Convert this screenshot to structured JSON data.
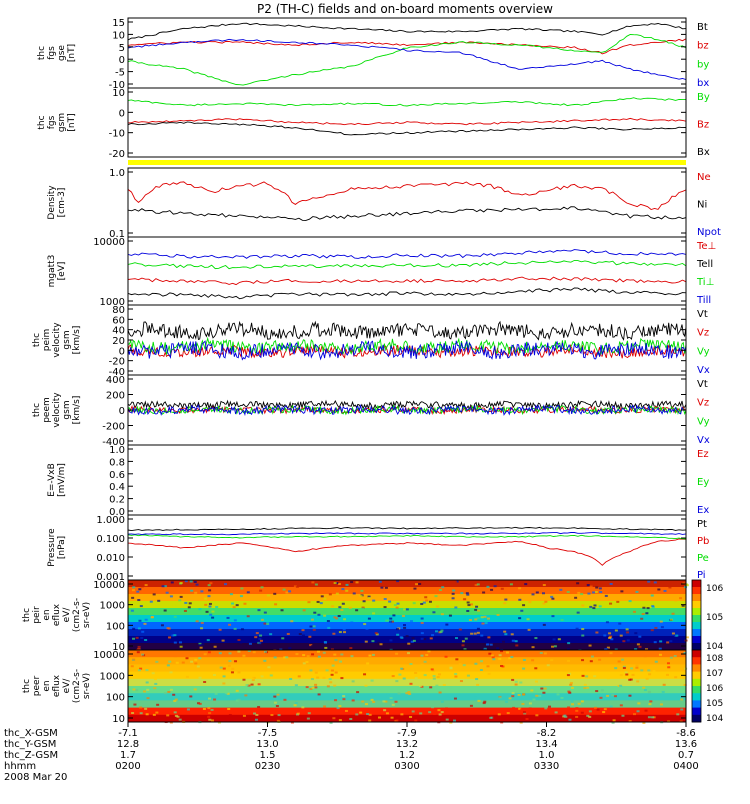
{
  "title": "P2 (TH-C) fields and on-board moments overview",
  "colors": {
    "black": "#000000",
    "red": "#dd0000",
    "green": "#00dd00",
    "blue": "#0000dd",
    "yellow": "#ffff00"
  },
  "chart_data": [
    {
      "type": "line",
      "id": "fgs_gse",
      "ylabel": [
        "thc",
        "fgs",
        "gse",
        "[nT]"
      ],
      "ticks": [
        "15",
        "10",
        "5",
        "0",
        "-5",
        "-10"
      ],
      "ylim": [
        -10,
        16
      ],
      "series": [
        {
          "name": "Bt",
          "color": "#000000",
          "x": [
            0,
            0.1,
            0.2,
            0.3,
            0.4,
            0.5,
            0.6,
            0.7,
            0.8,
            0.85,
            0.9,
            0.95,
            1.0
          ],
          "values": [
            8,
            12,
            14,
            13,
            12,
            11,
            11,
            12,
            11,
            10,
            13,
            14,
            12
          ]
        },
        {
          "name": "bz",
          "color": "#dd0000",
          "x": [
            0,
            0.1,
            0.2,
            0.3,
            0.4,
            0.5,
            0.6,
            0.7,
            0.8,
            0.85,
            0.9,
            0.95,
            1.0
          ],
          "values": [
            6,
            7,
            7,
            6,
            7,
            6,
            7,
            6,
            5,
            3,
            6,
            7,
            8
          ]
        },
        {
          "name": "by",
          "color": "#00dd00",
          "x": [
            0,
            0.1,
            0.2,
            0.3,
            0.4,
            0.5,
            0.6,
            0.7,
            0.8,
            0.85,
            0.9,
            0.95,
            1.0
          ],
          "values": [
            0,
            -3,
            -9,
            -5,
            -2,
            5,
            7,
            6,
            4,
            3,
            10,
            8,
            5
          ]
        },
        {
          "name": "bx",
          "color": "#0000dd",
          "x": [
            0,
            0.1,
            0.2,
            0.3,
            0.4,
            0.5,
            0.6,
            0.7,
            0.8,
            0.85,
            0.9,
            0.95,
            1.0
          ],
          "values": [
            5,
            7,
            8,
            7,
            6,
            4,
            3,
            -3,
            -1,
            0,
            -3,
            -5,
            -7
          ]
        }
      ]
    },
    {
      "type": "line",
      "id": "fgs_gsm",
      "ylabel": [
        "thc",
        "fgs",
        "gsm",
        "[nT]"
      ],
      "ticks": [
        "10",
        "0",
        "-10",
        "-20"
      ],
      "ylim": [
        -25,
        15
      ],
      "series": [
        {
          "name": "By",
          "color": "#00dd00",
          "x": [
            0,
            0.1,
            0.2,
            0.3,
            0.4,
            0.5,
            0.6,
            0.7,
            0.8,
            0.9,
            1.0
          ],
          "values": [
            8,
            5,
            6,
            5,
            6,
            5,
            6,
            7,
            5,
            9,
            8
          ]
        },
        {
          "name": "Bz",
          "color": "#dd0000",
          "x": [
            0,
            0.1,
            0.2,
            0.3,
            0.4,
            0.5,
            0.6,
            0.7,
            0.8,
            0.9,
            1.0
          ],
          "values": [
            -5,
            -4,
            -3,
            -5,
            -6,
            -5,
            -6,
            -5,
            -4,
            -3,
            -4
          ]
        },
        {
          "name": "Bx",
          "color": "#000000",
          "x": [
            0,
            0.1,
            0.2,
            0.3,
            0.4,
            0.5,
            0.6,
            0.7,
            0.8,
            0.9,
            1.0
          ],
          "values": [
            -6,
            -5,
            -6,
            -8,
            -12,
            -11,
            -10,
            -9,
            -8,
            -9,
            -8
          ]
        }
      ]
    },
    {
      "type": "line",
      "id": "density",
      "ylabel": [
        "Density",
        "[cm^-3]"
      ],
      "ticks": [
        "1.0",
        "0.1"
      ],
      "ylim": [
        0.1,
        1.0
      ],
      "series": [
        {
          "name": "Ne",
          "color": "#dd0000",
          "x": [
            0,
            0.02,
            0.05,
            0.1,
            0.15,
            0.2,
            0.25,
            0.3,
            0.4,
            0.5,
            0.6,
            0.65,
            0.7,
            0.8,
            0.85,
            0.9,
            0.95,
            1.0
          ],
          "values": [
            0.5,
            0.3,
            0.55,
            0.6,
            0.45,
            0.55,
            0.6,
            0.3,
            0.5,
            0.55,
            0.6,
            0.55,
            0.4,
            0.55,
            0.5,
            0.3,
            0.25,
            0.5
          ]
        },
        {
          "name": "Ni",
          "color": "#000000",
          "x": [
            0,
            0.1,
            0.2,
            0.3,
            0.4,
            0.5,
            0.6,
            0.7,
            0.8,
            0.9,
            1.0
          ],
          "values": [
            0.25,
            0.22,
            0.2,
            0.18,
            0.2,
            0.22,
            0.24,
            0.25,
            0.26,
            0.2,
            0.19
          ]
        },
        {
          "name": "Npot",
          "color": "#0000dd",
          "x": [],
          "values": []
        }
      ]
    },
    {
      "type": "line",
      "id": "temperature",
      "ylabel": [
        "mgatt3",
        "[eV]"
      ],
      "ticks": [
        "10000",
        "1000"
      ],
      "ylim": [
        1000,
        10000
      ],
      "series": [
        {
          "name": "Te⊥",
          "color": "#dd0000",
          "x": [
            0,
            0.1,
            0.2,
            0.3,
            0.4,
            0.5,
            0.6,
            0.7,
            0.8,
            0.9,
            1.0
          ],
          "values": [
            2400,
            2200,
            2100,
            2300,
            2200,
            2300,
            2200,
            2500,
            2400,
            2300,
            2200
          ]
        },
        {
          "name": "Tell",
          "color": "#000000",
          "x": [
            0,
            0.1,
            0.2,
            0.3,
            0.4,
            0.5,
            0.6,
            0.7,
            0.8,
            0.9,
            1.0
          ],
          "values": [
            1500,
            1400,
            1300,
            1450,
            1400,
            1500,
            1400,
            1600,
            1700,
            1550,
            1450
          ]
        },
        {
          "name": "Ti⊥",
          "color": "#00dd00",
          "x": [
            0,
            0.1,
            0.2,
            0.3,
            0.4,
            0.5,
            0.6,
            0.7,
            0.8,
            0.9,
            1.0
          ],
          "values": [
            4000,
            3700,
            3600,
            3800,
            3700,
            3900,
            3800,
            4200,
            4300,
            4100,
            3900
          ]
        },
        {
          "name": "Till",
          "color": "#0000dd",
          "x": [
            0,
            0.1,
            0.2,
            0.3,
            0.4,
            0.5,
            0.6,
            0.7,
            0.8,
            0.9,
            1.0
          ],
          "values": [
            5600,
            5200,
            5000,
            5300,
            5100,
            5400,
            5300,
            5800,
            6200,
            5700,
            5500
          ]
        }
      ]
    },
    {
      "type": "line",
      "id": "peim_velocity",
      "ylabel": [
        "thc",
        "peim",
        "velocity",
        "gsm",
        "[km/s]"
      ],
      "ticks": [
        "80",
        "60",
        "40",
        "20",
        "0",
        "-20",
        "-40"
      ],
      "ylim": [
        -50,
        85
      ],
      "series": [
        {
          "name": "Vt",
          "color": "#000000",
          "base": 35,
          "noise": 14
        },
        {
          "name": "Vz",
          "color": "#dd0000",
          "base": -5,
          "noise": 10
        },
        {
          "name": "Vy",
          "color": "#00dd00",
          "base": 5,
          "noise": 12
        },
        {
          "name": "Vx",
          "color": "#0000dd",
          "base": -2,
          "noise": 14
        }
      ]
    },
    {
      "type": "line",
      "id": "peem_velocity",
      "ylabel": [
        "thc",
        "peem",
        "velocity",
        "gsm",
        "[km/s]"
      ],
      "ticks": [
        "400",
        "200",
        "0",
        "-200",
        "-400"
      ],
      "ylim": [
        -420,
        420
      ],
      "series": [
        {
          "name": "Vt",
          "color": "#000000",
          "base": 60,
          "noise": 40
        },
        {
          "name": "Vz",
          "color": "#dd0000",
          "base": 0,
          "noise": 35
        },
        {
          "name": "Vy",
          "color": "#00dd00",
          "base": 0,
          "noise": 40
        },
        {
          "name": "Vx",
          "color": "#0000dd",
          "base": 0,
          "noise": 45
        }
      ]
    },
    {
      "type": "line",
      "id": "efield",
      "ylabel": [
        "E=-VxB",
        "[mV/m]"
      ],
      "ticks": [
        "1.0",
        "0.8",
        "0.6",
        "0.4",
        "0.2",
        "0.0"
      ],
      "ylim": [
        0,
        1
      ],
      "series": [
        {
          "name": "Ez",
          "color": "#dd0000"
        },
        {
          "name": "Ey",
          "color": "#00dd00"
        },
        {
          "name": "Ex",
          "color": "#0000dd"
        }
      ]
    },
    {
      "type": "line",
      "id": "pressure",
      "ylabel": [
        "Pressure",
        "[nPa]"
      ],
      "ticks": [
        "1.000",
        "0.100",
        "0.010",
        "0.001"
      ],
      "ylim": [
        0.001,
        1.0
      ],
      "series": [
        {
          "name": "Pt",
          "color": "#000000",
          "x": [
            0,
            0.1,
            0.2,
            0.3,
            0.4,
            0.5,
            0.6,
            0.7,
            0.8,
            0.9,
            1.0
          ],
          "values": [
            0.2,
            0.21,
            0.22,
            0.24,
            0.25,
            0.24,
            0.25,
            0.26,
            0.25,
            0.22,
            0.2
          ]
        },
        {
          "name": "Pb",
          "color": "#dd0000",
          "x": [
            0,
            0.05,
            0.1,
            0.2,
            0.3,
            0.4,
            0.5,
            0.6,
            0.7,
            0.75,
            0.8,
            0.85,
            0.9,
            0.95,
            1.0
          ],
          "values": [
            0.05,
            0.04,
            0.03,
            0.05,
            0.02,
            0.04,
            0.05,
            0.04,
            0.06,
            0.03,
            0.02,
            0.005,
            0.02,
            0.06,
            0.08
          ]
        },
        {
          "name": "Pe",
          "color": "#00dd00",
          "x": [
            0,
            0.1,
            0.2,
            0.3,
            0.4,
            0.5,
            0.6,
            0.7,
            0.8,
            0.9,
            1.0
          ],
          "values": [
            0.12,
            0.1,
            0.09,
            0.1,
            0.1,
            0.11,
            0.1,
            0.1,
            0.11,
            0.1,
            0.08
          ]
        },
        {
          "name": "Pi",
          "color": "#0000dd",
          "x": [
            0,
            0.1,
            0.2,
            0.3,
            0.4,
            0.5,
            0.6,
            0.7,
            0.8,
            0.9,
            1.0
          ],
          "values": [
            0.13,
            0.13,
            0.13,
            0.14,
            0.14,
            0.14,
            0.14,
            0.14,
            0.15,
            0.14,
            0.13
          ]
        }
      ]
    },
    {
      "type": "heatmap",
      "id": "peir_spectrogram",
      "ylabel": [
        "thc",
        "peir",
        "en",
        "eflux",
        "eV/",
        "(cm^2-s-",
        "sr-eV)"
      ],
      "ticks": [
        "10000",
        "1000",
        "100",
        "10"
      ],
      "colorbar_ticks": [
        "10^6",
        "10^5",
        "10^4"
      ]
    },
    {
      "type": "heatmap",
      "id": "peer_spectrogram",
      "ylabel": [
        "thc",
        "peer",
        "en",
        "eflux",
        "eV/",
        "(cm^2-s-",
        "sr-eV)"
      ],
      "ticks": [
        "10000",
        "1000",
        "100",
        "10"
      ],
      "colorbar_ticks": [
        "10^8",
        "10^7",
        "10^6",
        "10^5",
        "10^4"
      ]
    }
  ],
  "xaxis": {
    "row_labels": [
      "thc_X-GSM",
      "thc_Y-GSM",
      "thc_Z-GSM",
      "hhmm",
      "2008 Mar 20"
    ],
    "columns": [
      {
        "x": "-7.1",
        "y": "12.8",
        "z": "1.7",
        "t": "0200"
      },
      {
        "x": "-7.5",
        "y": "13.0",
        "z": "1.5",
        "t": "0230"
      },
      {
        "x": "-7.9",
        "y": "13.2",
        "z": "1.2",
        "t": "0300"
      },
      {
        "x": "-8.2",
        "y": "13.4",
        "z": "1.0",
        "t": "0330"
      },
      {
        "x": "-8.6",
        "y": "13.6",
        "z": "0.7",
        "t": "0400"
      }
    ]
  }
}
